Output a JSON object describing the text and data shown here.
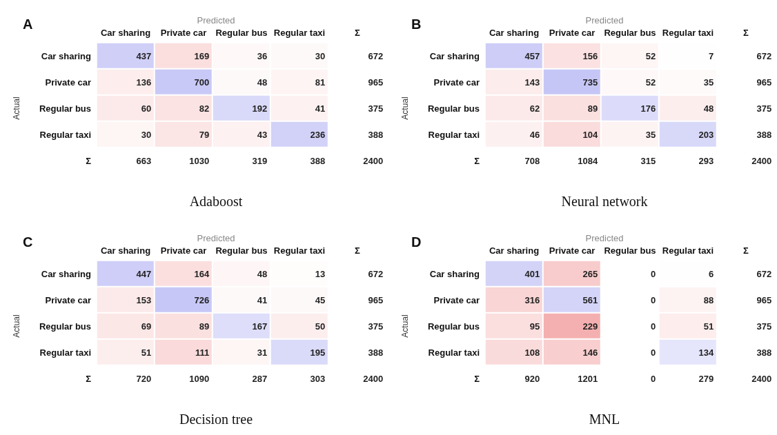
{
  "chart_data": [
    {
      "type": "heatmap",
      "title": "A",
      "xlabel": "Predicted",
      "ylabel": "Actual",
      "annotations": [
        "Adaboost"
      ],
      "categories": [
        "Car sharing",
        "Private car",
        "Regular bus",
        "Regular taxi",
        "Σ"
      ],
      "y_categories": [
        "Car sharing",
        "Private car",
        "Regular bus",
        "Regular taxi",
        "Σ"
      ],
      "cells": [
        [
          437,
          169,
          36,
          30,
          672
        ],
        [
          136,
          700,
          48,
          81,
          965
        ],
        [
          60,
          82,
          192,
          41,
          375
        ],
        [
          30,
          79,
          43,
          236,
          388
        ],
        [
          663,
          1030,
          319,
          388,
          2400
        ]
      ],
      "data_labels": true
    },
    {
      "type": "heatmap",
      "title": "B",
      "xlabel": "Predicted",
      "ylabel": "Actual",
      "annotations": [
        "Neural network"
      ],
      "categories": [
        "Car sharing",
        "Private car",
        "Regular bus",
        "Regular taxi",
        "Σ"
      ],
      "y_categories": [
        "Car sharing",
        "Private car",
        "Regular bus",
        "Regular taxi",
        "Σ"
      ],
      "cells": [
        [
          457,
          156,
          52,
          7,
          672
        ],
        [
          143,
          735,
          52,
          35,
          965
        ],
        [
          62,
          89,
          176,
          48,
          375
        ],
        [
          46,
          104,
          35,
          203,
          388
        ],
        [
          708,
          1084,
          315,
          293,
          2400
        ]
      ],
      "data_labels": true
    },
    {
      "type": "heatmap",
      "title": "C",
      "xlabel": "Predicted",
      "ylabel": "Actual",
      "annotations": [
        "Decision tree"
      ],
      "categories": [
        "Car sharing",
        "Private car",
        "Regular bus",
        "Regular taxi",
        "Σ"
      ],
      "y_categories": [
        "Car sharing",
        "Private car",
        "Regular bus",
        "Regular taxi",
        "Σ"
      ],
      "cells": [
        [
          447,
          164,
          48,
          13,
          672
        ],
        [
          153,
          726,
          41,
          45,
          965
        ],
        [
          69,
          89,
          167,
          50,
          375
        ],
        [
          51,
          111,
          31,
          195,
          388
        ],
        [
          720,
          1090,
          287,
          303,
          2400
        ]
      ],
      "data_labels": true
    },
    {
      "type": "heatmap",
      "title": "D",
      "xlabel": "Predicted",
      "ylabel": "Actual",
      "annotations": [
        "MNL"
      ],
      "categories": [
        "Car sharing",
        "Private car",
        "Regular bus",
        "Regular taxi",
        "Σ"
      ],
      "y_categories": [
        "Car sharing",
        "Private car",
        "Regular bus",
        "Regular taxi",
        "Σ"
      ],
      "cells": [
        [
          401,
          265,
          0,
          6,
          672
        ],
        [
          316,
          561,
          0,
          88,
          965
        ],
        [
          95,
          229,
          0,
          51,
          375
        ],
        [
          108,
          146,
          0,
          134,
          388
        ],
        [
          920,
          1201,
          0,
          279,
          2400
        ]
      ],
      "data_labels": true
    }
  ]
}
